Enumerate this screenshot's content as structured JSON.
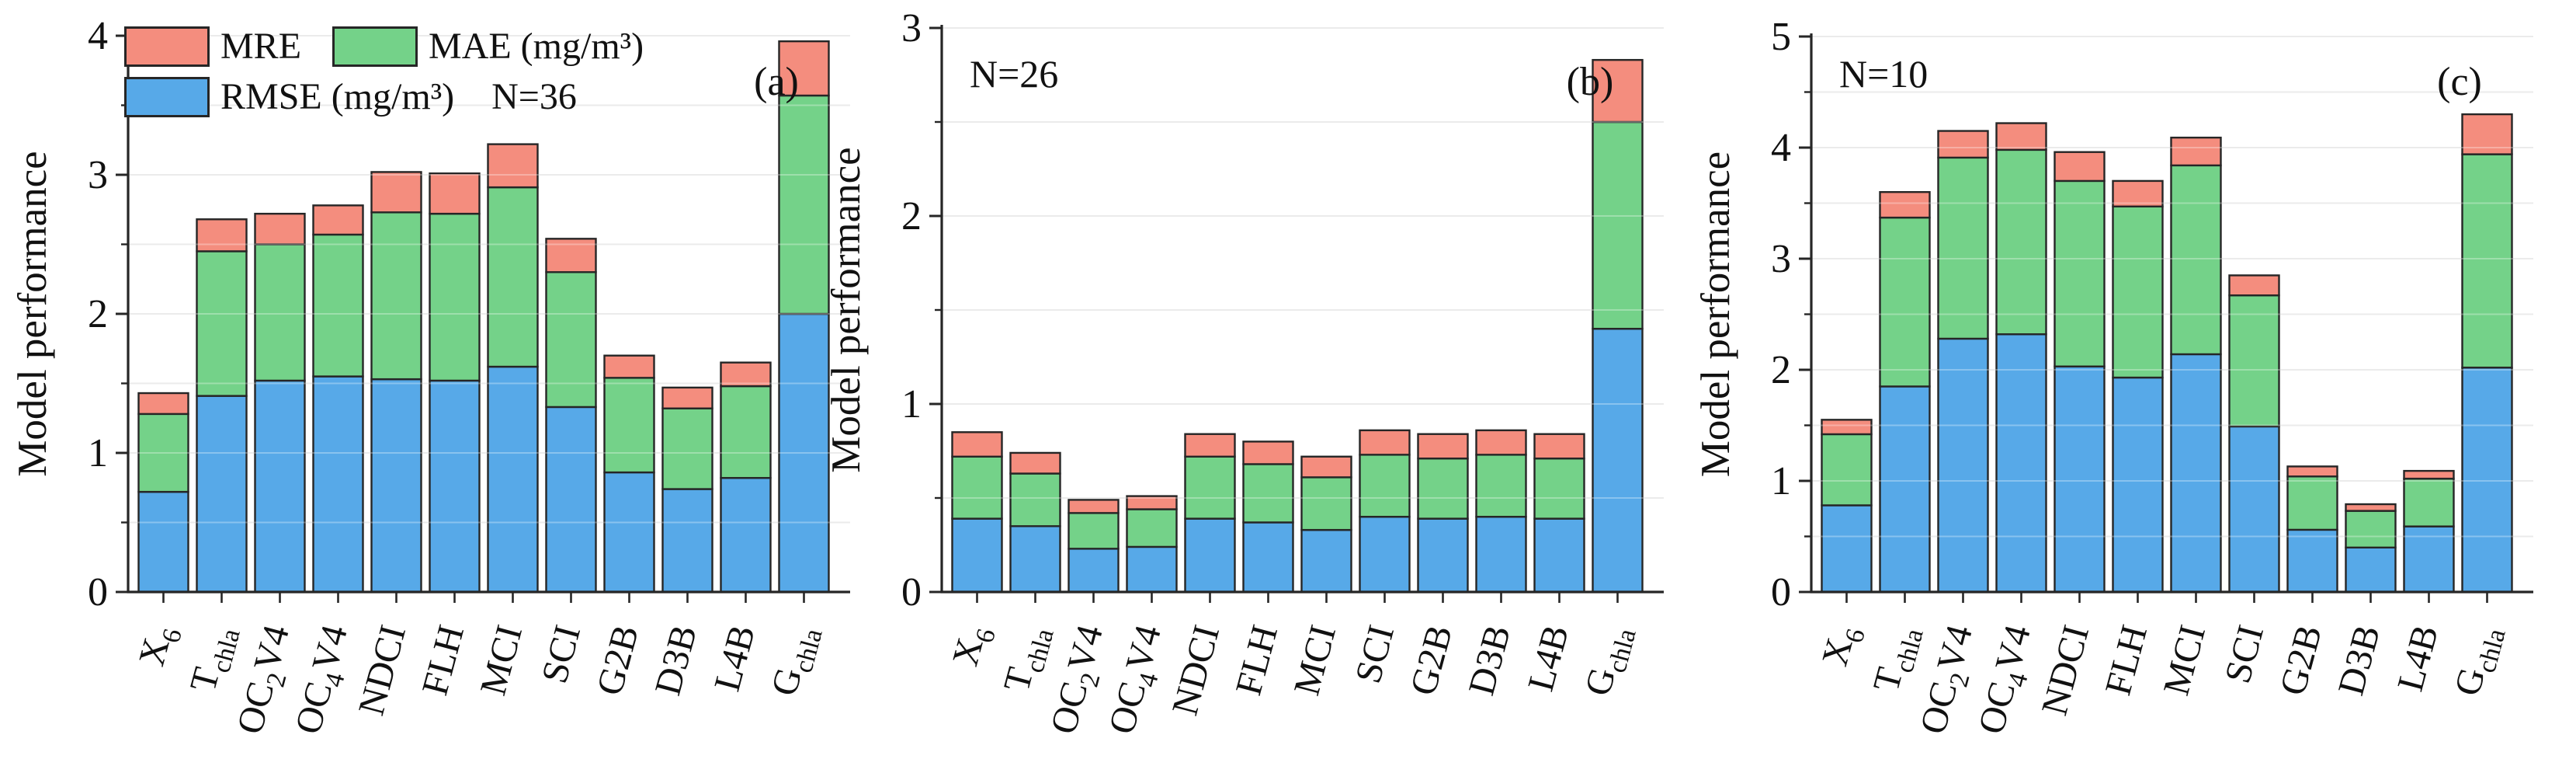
{
  "figure": {
    "background": "#ffffff",
    "axis_color": "#262626",
    "bar_edge_color": "#262626",
    "gridline_color": "#e3e3e3",
    "gridline_overlay": "rgba(255,255,255,0.30)"
  },
  "legend": {
    "row1": [
      {
        "label": "MRE",
        "color": "#f48d7e"
      },
      {
        "label": "MAE (mg/m³)",
        "color": "#74d289"
      }
    ],
    "row2": [
      {
        "label": "RMSE (mg/m³)",
        "color": "#57a9e8"
      }
    ],
    "n_label": "N=36"
  },
  "chart_data": [
    {
      "type": "bar",
      "stacked": true,
      "panel_label": "(a)",
      "n_label": "",
      "ylabel": "Model performance",
      "xlabel": "",
      "ylim": [
        0,
        4
      ],
      "yticks": [
        0,
        1,
        2,
        3,
        4
      ],
      "minor_tick_step": 0.5,
      "grid": true,
      "legend_position": "upper-left",
      "categories": [
        "X_{6}",
        "T_{chla}",
        "OC_{2}V4",
        "OC_{4}V4",
        "NDCI",
        "FLH",
        "MCI",
        "SCI",
        "G2B",
        "D3B",
        "L4B",
        "G_{chla}"
      ],
      "series": [
        {
          "name": "RMSE (mg/m³)",
          "color": "#57a9e8",
          "values": [
            0.72,
            1.41,
            1.52,
            1.55,
            1.53,
            1.52,
            1.62,
            1.33,
            0.86,
            0.74,
            0.82,
            2.0
          ]
        },
        {
          "name": "MAE (mg/m³)",
          "color": "#74d289",
          "values": [
            0.56,
            1.04,
            0.98,
            1.02,
            1.2,
            1.2,
            1.29,
            0.97,
            0.68,
            0.58,
            0.66,
            1.57
          ]
        },
        {
          "name": "MRE",
          "color": "#f48d7e",
          "values": [
            0.15,
            0.23,
            0.22,
            0.21,
            0.29,
            0.29,
            0.31,
            0.24,
            0.16,
            0.15,
            0.17,
            0.39
          ]
        }
      ]
    },
    {
      "type": "bar",
      "stacked": true,
      "panel_label": "(b)",
      "n_label": "N=26",
      "ylabel": "Model performance",
      "xlabel": "",
      "ylim": [
        0,
        3
      ],
      "yticks": [
        0,
        1,
        2,
        3
      ],
      "minor_tick_step": 0.5,
      "grid": true,
      "legend_position": "none",
      "categories": [
        "X_{6}",
        "T_{chla}",
        "OC_{2}V4",
        "OC_{4}V4",
        "NDCI",
        "FLH",
        "MCI",
        "SCI",
        "G2B",
        "D3B",
        "L4B",
        "G_{chla}"
      ],
      "series": [
        {
          "name": "RMSE (mg/m³)",
          "color": "#57a9e8",
          "values": [
            0.39,
            0.35,
            0.23,
            0.24,
            0.39,
            0.37,
            0.33,
            0.4,
            0.39,
            0.4,
            0.39,
            1.4
          ]
        },
        {
          "name": "MAE (mg/m³)",
          "color": "#74d289",
          "values": [
            0.33,
            0.28,
            0.19,
            0.2,
            0.33,
            0.31,
            0.28,
            0.33,
            0.32,
            0.33,
            0.32,
            1.1
          ]
        },
        {
          "name": "MRE",
          "color": "#f48d7e",
          "values": [
            0.13,
            0.11,
            0.07,
            0.07,
            0.12,
            0.12,
            0.11,
            0.13,
            0.13,
            0.13,
            0.13,
            0.33
          ]
        }
      ]
    },
    {
      "type": "bar",
      "stacked": true,
      "panel_label": "(c)",
      "n_label": "N=10",
      "ylabel": "Model performance",
      "xlabel": "",
      "ylim": [
        0,
        5
      ],
      "yticks": [
        0,
        1,
        2,
        3,
        4,
        5
      ],
      "minor_tick_step": 0.5,
      "grid": true,
      "legend_position": "none",
      "categories": [
        "X_{6}",
        "T_{chla}",
        "OC_{2}V4",
        "OC_{4}V4",
        "NDCI",
        "FLH",
        "MCI",
        "SCI",
        "G2B",
        "D3B",
        "L4B",
        "G_{chla}"
      ],
      "series": [
        {
          "name": "RMSE (mg/m³)",
          "color": "#57a9e8",
          "values": [
            0.78,
            1.85,
            2.28,
            2.32,
            2.03,
            1.93,
            2.14,
            1.49,
            0.56,
            0.4,
            0.59,
            2.02
          ]
        },
        {
          "name": "MAE (mg/m³)",
          "color": "#74d289",
          "values": [
            0.64,
            1.52,
            1.63,
            1.66,
            1.67,
            1.54,
            1.7,
            1.18,
            0.48,
            0.33,
            0.43,
            1.92
          ]
        },
        {
          "name": "MRE",
          "color": "#f48d7e",
          "values": [
            0.13,
            0.23,
            0.24,
            0.24,
            0.26,
            0.23,
            0.25,
            0.18,
            0.09,
            0.06,
            0.07,
            0.36
          ]
        }
      ]
    }
  ]
}
